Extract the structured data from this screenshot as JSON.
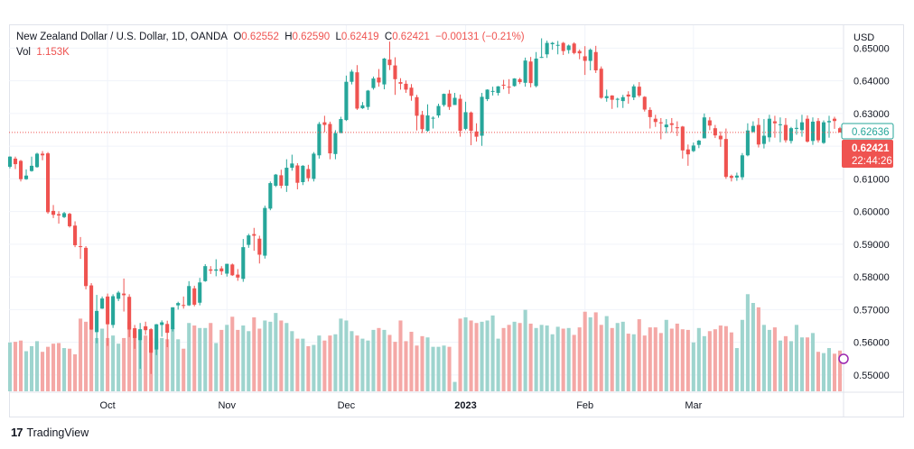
{
  "legend": {
    "symbol": "New Zealand Dollar / U.S. Dollar, 1D, OANDA",
    "o_label": "O",
    "o_value": "0.62552",
    "h_label": "H",
    "h_value": "0.62590",
    "l_label": "L",
    "l_value": "0.62419",
    "c_label": "C",
    "c_value": "0.62421",
    "change": "−0.00131 (−0.21%)",
    "vol_label": "Vol",
    "vol_value": "1.153K"
  },
  "footer": {
    "brand": "TradingView"
  },
  "colors": {
    "up": "#26a69a",
    "down": "#ef5350",
    "vol_up": "#9ed4ce",
    "vol_down": "#f4a8a6",
    "grid": "#f0f3fa",
    "text": "#131722"
  },
  "chart_data": {
    "type": "candlestick",
    "currency_label": "USD",
    "ylim": [
      0.545,
      0.657
    ],
    "y_ticks": [
      "0.65000",
      "0.64000",
      "0.63000",
      "0.62000",
      "0.61000",
      "0.60000",
      "0.59000",
      "0.58000",
      "0.57000",
      "0.56000",
      "0.55000"
    ],
    "x_ticks": [
      {
        "label": "Oct",
        "index": 18,
        "bold": false
      },
      {
        "label": "Nov",
        "index": 40,
        "bold": false
      },
      {
        "label": "Dec",
        "index": 62,
        "bold": false
      },
      {
        "label": "2023",
        "index": 84,
        "bold": true
      },
      {
        "label": "Feb",
        "index": 106,
        "bold": false
      },
      {
        "label": "Mar",
        "index": 126,
        "bold": false
      }
    ],
    "last_price": "0.62421",
    "countdown": "22:44:26",
    "high_marker": "0.62636",
    "candles": [
      [
        0.6137,
        0.6168,
        0.6132,
        0.6169,
        7.8
      ],
      [
        0.6162,
        0.6145,
        0.613,
        0.6168,
        7.9
      ],
      [
        0.6155,
        0.6099,
        0.6092,
        0.6158,
        8.1
      ],
      [
        0.6099,
        0.611,
        0.6097,
        0.6129,
        6.4
      ],
      [
        0.6124,
        0.614,
        0.6122,
        0.6168,
        7.2
      ],
      [
        0.6136,
        0.6177,
        0.6134,
        0.618,
        8.0
      ],
      [
        0.6177,
        0.6172,
        0.6157,
        0.6185,
        6.3
      ],
      [
        0.6178,
        0.5998,
        0.5993,
        0.6182,
        7.1
      ],
      [
        0.6002,
        0.599,
        0.598,
        0.602,
        7.6
      ],
      [
        0.5992,
        0.5988,
        0.5963,
        0.6001,
        7.7
      ],
      [
        0.5983,
        0.5995,
        0.598,
        0.5999,
        6.9
      ],
      [
        0.5993,
        0.5955,
        0.5951,
        0.5996,
        6.8
      ],
      [
        0.5957,
        0.5897,
        0.5891,
        0.597,
        5.9
      ],
      [
        0.5894,
        0.5892,
        0.5855,
        0.5922,
        11.6
      ],
      [
        0.5889,
        0.5772,
        0.5762,
        0.5894,
        11.1
      ],
      [
        0.5774,
        0.5639,
        0.5638,
        0.5781,
        12.1
      ],
      [
        0.5631,
        0.5696,
        0.5597,
        0.5745,
        8.5
      ],
      [
        0.5703,
        0.5734,
        0.5702,
        0.574,
        10.0
      ],
      [
        0.574,
        0.5655,
        0.5589,
        0.5749,
        8.5
      ],
      [
        0.5653,
        0.5741,
        0.5644,
        0.5747,
        8.9
      ],
      [
        0.5733,
        0.5752,
        0.5726,
        0.5757,
        7.6
      ],
      [
        0.5749,
        0.5744,
        0.5694,
        0.5795,
        8.5
      ],
      [
        0.5739,
        0.5639,
        0.5616,
        0.5747,
        11.1
      ],
      [
        0.5643,
        0.5613,
        0.558,
        0.5653,
        9.6
      ],
      [
        0.5606,
        0.564,
        0.5519,
        0.5659,
        8.1
      ],
      [
        0.5649,
        0.5637,
        0.5623,
        0.5663,
        8.9
      ],
      [
        0.564,
        0.5568,
        0.5503,
        0.5643,
        8.5
      ],
      [
        0.5578,
        0.5655,
        0.5561,
        0.5656,
        8.4
      ],
      [
        0.5653,
        0.5661,
        0.5617,
        0.5667,
        8.5
      ],
      [
        0.5656,
        0.5629,
        0.5585,
        0.5666,
        8.3
      ],
      [
        0.564,
        0.5707,
        0.5633,
        0.5707,
        10.1
      ],
      [
        0.5713,
        0.572,
        0.57,
        0.5724,
        8.3
      ],
      [
        0.5714,
        0.5713,
        0.5703,
        0.574,
        6.8
      ],
      [
        0.5713,
        0.5772,
        0.5711,
        0.5787,
        10.9
      ],
      [
        0.5765,
        0.5715,
        0.571,
        0.5773,
        10.5
      ],
      [
        0.5721,
        0.5783,
        0.5713,
        0.5797,
        10.1
      ],
      [
        0.5787,
        0.5833,
        0.5785,
        0.5839,
        10.1
      ],
      [
        0.5823,
        0.5819,
        0.5809,
        0.5833,
        10.9
      ],
      [
        0.5819,
        0.5823,
        0.5802,
        0.5854,
        7.7
      ],
      [
        0.5826,
        0.5817,
        0.5806,
        0.5833,
        9.8
      ],
      [
        0.581,
        0.584,
        0.5801,
        0.584,
        10.6
      ],
      [
        0.5838,
        0.5805,
        0.5803,
        0.5841,
        11.9
      ],
      [
        0.5807,
        0.5798,
        0.5788,
        0.5824,
        9.8
      ],
      [
        0.5794,
        0.5891,
        0.5785,
        0.5916,
        10.5
      ],
      [
        0.5898,
        0.5927,
        0.5889,
        0.5932,
        9.6
      ],
      [
        0.5931,
        0.5926,
        0.588,
        0.595,
        11.8
      ],
      [
        0.5917,
        0.5868,
        0.5841,
        0.5926,
        10.0
      ],
      [
        0.5865,
        0.6011,
        0.5856,
        0.6018,
        11.3
      ],
      [
        0.6009,
        0.6087,
        0.6004,
        0.6092,
        11.1
      ],
      [
        0.6079,
        0.6113,
        0.6075,
        0.6115,
        12.5
      ],
      [
        0.6111,
        0.6079,
        0.6071,
        0.6128,
        11.3
      ],
      [
        0.6079,
        0.6134,
        0.606,
        0.616,
        10.9
      ],
      [
        0.6134,
        0.6147,
        0.6125,
        0.6174,
        9.6
      ],
      [
        0.6141,
        0.6088,
        0.6068,
        0.6148,
        8.4
      ],
      [
        0.609,
        0.614,
        0.6081,
        0.6142,
        8.4
      ],
      [
        0.613,
        0.6102,
        0.6092,
        0.6143,
        7.2
      ],
      [
        0.61,
        0.6177,
        0.6092,
        0.6182,
        7.4
      ],
      [
        0.6172,
        0.6268,
        0.6162,
        0.6274,
        8.9
      ],
      [
        0.6273,
        0.6265,
        0.6243,
        0.6293,
        8.1
      ],
      [
        0.6268,
        0.6178,
        0.616,
        0.6275,
        8.9
      ],
      [
        0.6176,
        0.624,
        0.616,
        0.6249,
        9.1
      ],
      [
        0.624,
        0.6283,
        0.624,
        0.629,
        11.6
      ],
      [
        0.628,
        0.6397,
        0.6277,
        0.6416,
        11.3
      ],
      [
        0.6397,
        0.6428,
        0.6389,
        0.6434,
        9.6
      ],
      [
        0.6426,
        0.6315,
        0.6311,
        0.6448,
        8.9
      ],
      [
        0.6316,
        0.6325,
        0.6314,
        0.6335,
        8.4
      ],
      [
        0.632,
        0.637,
        0.6311,
        0.6372,
        8.1
      ],
      [
        0.6378,
        0.6407,
        0.6373,
        0.6413,
        9.8
      ],
      [
        0.641,
        0.6395,
        0.6382,
        0.6436,
        10.1
      ],
      [
        0.6389,
        0.6468,
        0.6374,
        0.647,
        9.8
      ],
      [
        0.6465,
        0.6448,
        0.6433,
        0.652,
        9.0
      ],
      [
        0.6447,
        0.6405,
        0.6357,
        0.6472,
        7.9
      ],
      [
        0.6396,
        0.6391,
        0.6373,
        0.6408,
        11.3
      ],
      [
        0.6391,
        0.6373,
        0.6363,
        0.6401,
        8.0
      ],
      [
        0.6379,
        0.6354,
        0.6339,
        0.639,
        9.5
      ],
      [
        0.635,
        0.6293,
        0.6248,
        0.6357,
        7.3
      ],
      [
        0.6296,
        0.6252,
        0.624,
        0.6308,
        8.8
      ],
      [
        0.6247,
        0.6294,
        0.6244,
        0.6328,
        8.6
      ],
      [
        0.6285,
        0.6287,
        0.6254,
        0.6291,
        7.1
      ],
      [
        0.6294,
        0.6323,
        0.6287,
        0.633,
        7.1
      ],
      [
        0.6326,
        0.636,
        0.6321,
        0.6361,
        7.3
      ],
      [
        0.6361,
        0.632,
        0.6311,
        0.6372,
        7.1
      ],
      [
        0.6326,
        0.6348,
        0.6327,
        0.6363,
        1.5
      ],
      [
        0.6345,
        0.6247,
        0.6229,
        0.6358,
        11.6
      ],
      [
        0.6253,
        0.6304,
        0.6249,
        0.6336,
        11.8
      ],
      [
        0.6303,
        0.6247,
        0.6203,
        0.6306,
        11.3
      ],
      [
        0.6245,
        0.6229,
        0.6214,
        0.627,
        10.9
      ],
      [
        0.6232,
        0.6351,
        0.6201,
        0.6363,
        11.1
      ],
      [
        0.6344,
        0.6373,
        0.6338,
        0.6374,
        11.3
      ],
      [
        0.6369,
        0.6369,
        0.6355,
        0.6382,
        12.1
      ],
      [
        0.6363,
        0.6383,
        0.6355,
        0.6384,
        8.4
      ],
      [
        0.6388,
        0.6387,
        0.6374,
        0.6403,
        10.1
      ],
      [
        0.6382,
        0.638,
        0.636,
        0.6405,
        10.6
      ],
      [
        0.6384,
        0.6407,
        0.6382,
        0.6408,
        11.1
      ],
      [
        0.6405,
        0.6396,
        0.639,
        0.6409,
        10.9
      ],
      [
        0.6394,
        0.6462,
        0.6382,
        0.6471,
        13.0
      ],
      [
        0.6459,
        0.6393,
        0.638,
        0.6473,
        10.8
      ],
      [
        0.6384,
        0.6468,
        0.638,
        0.6488,
        10.1
      ],
      [
        0.6471,
        0.6473,
        0.647,
        0.653,
        10.6
      ],
      [
        0.6481,
        0.6516,
        0.647,
        0.6523,
        10.5
      ],
      [
        0.6512,
        0.6516,
        0.6495,
        0.6519,
        9.1
      ],
      [
        0.651,
        0.651,
        0.6481,
        0.6522,
        10.3
      ],
      [
        0.6516,
        0.6491,
        0.6479,
        0.6519,
        10.0
      ],
      [
        0.6494,
        0.6508,
        0.6483,
        0.6511,
        10.1
      ],
      [
        0.6514,
        0.6485,
        0.6481,
        0.6518,
        9.0
      ],
      [
        0.6491,
        0.6484,
        0.6466,
        0.6496,
        10.2
      ],
      [
        0.6475,
        0.6461,
        0.6418,
        0.6506,
        12.7
      ],
      [
        0.6461,
        0.6495,
        0.6432,
        0.6499,
        11.8
      ],
      [
        0.6488,
        0.6432,
        0.6424,
        0.6507,
        12.6
      ],
      [
        0.6437,
        0.6348,
        0.6345,
        0.6444,
        10.6
      ],
      [
        0.6347,
        0.6353,
        0.6336,
        0.6373,
        12.0
      ],
      [
        0.6355,
        0.6342,
        0.6314,
        0.6356,
        10.1
      ],
      [
        0.6342,
        0.6345,
        0.6318,
        0.6348,
        10.9
      ],
      [
        0.6338,
        0.635,
        0.6317,
        0.6357,
        11.1
      ],
      [
        0.6358,
        0.6352,
        0.633,
        0.6368,
        9.2
      ],
      [
        0.6349,
        0.6383,
        0.6341,
        0.6389,
        9.1
      ],
      [
        0.6382,
        0.6355,
        0.635,
        0.6396,
        11.5
      ],
      [
        0.6351,
        0.6312,
        0.6306,
        0.6353,
        8.9
      ],
      [
        0.6311,
        0.6289,
        0.6254,
        0.6319,
        10.2
      ],
      [
        0.6284,
        0.6274,
        0.6259,
        0.6296,
        10.2
      ],
      [
        0.6273,
        0.627,
        0.6221,
        0.6286,
        9.3
      ],
      [
        0.6258,
        0.6266,
        0.624,
        0.6283,
        11.4
      ],
      [
        0.627,
        0.6265,
        0.6242,
        0.6286,
        10.0
      ],
      [
        0.6258,
        0.6255,
        0.6231,
        0.6276,
        10.8
      ],
      [
        0.626,
        0.6187,
        0.6162,
        0.6262,
        9.9
      ],
      [
        0.619,
        0.6175,
        0.614,
        0.6205,
        9.8
      ],
      [
        0.6185,
        0.6202,
        0.6182,
        0.6211,
        7.8
      ],
      [
        0.6204,
        0.6217,
        0.6194,
        0.6219,
        10.1
      ],
      [
        0.6224,
        0.6288,
        0.6224,
        0.63,
        8.8
      ],
      [
        0.6279,
        0.6263,
        0.6249,
        0.6289,
        9.6
      ],
      [
        0.6255,
        0.6233,
        0.6225,
        0.6265,
        9.9
      ],
      [
        0.6232,
        0.6221,
        0.6198,
        0.6245,
        10.5
      ],
      [
        0.6222,
        0.6106,
        0.61,
        0.6254,
        10.4
      ],
      [
        0.6109,
        0.6103,
        0.6092,
        0.6113,
        9.4
      ],
      [
        0.6104,
        0.611,
        0.6094,
        0.6119,
        6.9
      ],
      [
        0.6105,
        0.6172,
        0.6097,
        0.6179,
        11.4
      ],
      [
        0.6172,
        0.6248,
        0.6169,
        0.627,
        15.5
      ],
      [
        0.6244,
        0.6262,
        0.6241,
        0.6276,
        14.1
      ],
      [
        0.6265,
        0.6205,
        0.6196,
        0.6286,
        13.4
      ],
      [
        0.6207,
        0.6232,
        0.6193,
        0.6283,
        10.6
      ],
      [
        0.6227,
        0.6284,
        0.6213,
        0.6296,
        9.8
      ],
      [
        0.6276,
        0.627,
        0.6226,
        0.6293,
        10.2
      ],
      [
        0.6267,
        0.6267,
        0.6212,
        0.6288,
        8.1
      ],
      [
        0.6265,
        0.6218,
        0.6211,
        0.6286,
        8.8
      ],
      [
        0.6216,
        0.6255,
        0.6208,
        0.6259,
        8.0
      ],
      [
        0.6253,
        0.6256,
        0.6235,
        0.6282,
        10.6
      ],
      [
        0.6249,
        0.6273,
        0.6229,
        0.6296,
        8.6
      ],
      [
        0.6284,
        0.6214,
        0.6211,
        0.6294,
        8.6
      ],
      [
        0.6216,
        0.6275,
        0.6204,
        0.6288,
        9.3
      ],
      [
        0.6277,
        0.6218,
        0.6211,
        0.6286,
        6.3
      ],
      [
        0.621,
        0.6273,
        0.6207,
        0.6279,
        6.1
      ],
      [
        0.6273,
        0.6277,
        0.6226,
        0.6293,
        6.9
      ],
      [
        0.6284,
        0.6277,
        0.6253,
        0.629,
        6.0
      ],
      [
        0.6255,
        0.6242,
        0.6242,
        0.6259,
        6.5
      ]
    ]
  }
}
